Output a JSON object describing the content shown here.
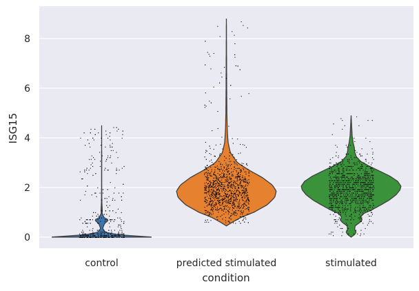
{
  "chart_data": {
    "type": "violin",
    "title": "",
    "xlabel": "condition",
    "ylabel": "ISG15",
    "ylim": [
      -0.45,
      9.3
    ],
    "yticks": [
      0,
      2,
      4,
      6,
      8
    ],
    "grid": true,
    "background": "#eaeaf2",
    "categories": [
      "control",
      "predicted stimulated",
      "stimulated"
    ],
    "series": [
      {
        "name": "control",
        "color": "#3b75af",
        "min": 0.0,
        "max": 4.5,
        "density": [
          [
            0.0,
            1.0
          ],
          [
            0.06,
            0.55
          ],
          [
            0.12,
            0.25
          ],
          [
            0.2,
            0.07
          ],
          [
            0.35,
            0.02
          ],
          [
            0.55,
            0.06
          ],
          [
            0.65,
            0.12
          ],
          [
            0.7,
            0.13
          ],
          [
            0.78,
            0.05
          ],
          [
            0.95,
            0.01
          ],
          [
            1.1,
            0.012
          ],
          [
            1.4,
            0.004
          ],
          [
            2.0,
            0.002
          ],
          [
            3.0,
            0.001
          ],
          [
            4.5,
            0.0
          ]
        ]
      },
      {
        "name": "predicted stimulated",
        "color": "#e6812f",
        "min": 0.45,
        "max": 8.8,
        "density": [
          [
            0.45,
            0.0
          ],
          [
            0.6,
            0.12
          ],
          [
            0.8,
            0.3
          ],
          [
            1.0,
            0.55
          ],
          [
            1.3,
            0.82
          ],
          [
            1.6,
            0.97
          ],
          [
            1.85,
            1.0
          ],
          [
            2.1,
            0.92
          ],
          [
            2.4,
            0.72
          ],
          [
            2.7,
            0.45
          ],
          [
            3.0,
            0.22
          ],
          [
            3.4,
            0.08
          ],
          [
            3.8,
            0.035
          ],
          [
            4.3,
            0.018
          ],
          [
            5.0,
            0.01
          ],
          [
            6.0,
            0.006
          ],
          [
            7.0,
            0.004
          ],
          [
            8.0,
            0.002
          ],
          [
            8.8,
            0.0
          ]
        ]
      },
      {
        "name": "stimulated",
        "color": "#3a923a",
        "min": 0.0,
        "max": 4.9,
        "density": [
          [
            0.0,
            0.0
          ],
          [
            0.1,
            0.07
          ],
          [
            0.2,
            0.1
          ],
          [
            0.3,
            0.07
          ],
          [
            0.45,
            0.08
          ],
          [
            0.6,
            0.18
          ],
          [
            0.7,
            0.22
          ],
          [
            0.8,
            0.19
          ],
          [
            0.95,
            0.25
          ],
          [
            1.1,
            0.42
          ],
          [
            1.3,
            0.6
          ],
          [
            1.5,
            0.77
          ],
          [
            1.7,
            0.9
          ],
          [
            1.9,
            0.98
          ],
          [
            2.05,
            1.0
          ],
          [
            2.25,
            0.93
          ],
          [
            2.45,
            0.78
          ],
          [
            2.65,
            0.58
          ],
          [
            2.85,
            0.37
          ],
          [
            3.05,
            0.19
          ],
          [
            3.25,
            0.1
          ],
          [
            3.45,
            0.07
          ],
          [
            3.6,
            0.065
          ],
          [
            3.8,
            0.04
          ],
          [
            4.1,
            0.02
          ],
          [
            4.5,
            0.01
          ],
          [
            4.9,
            0.0
          ]
        ]
      }
    ]
  }
}
